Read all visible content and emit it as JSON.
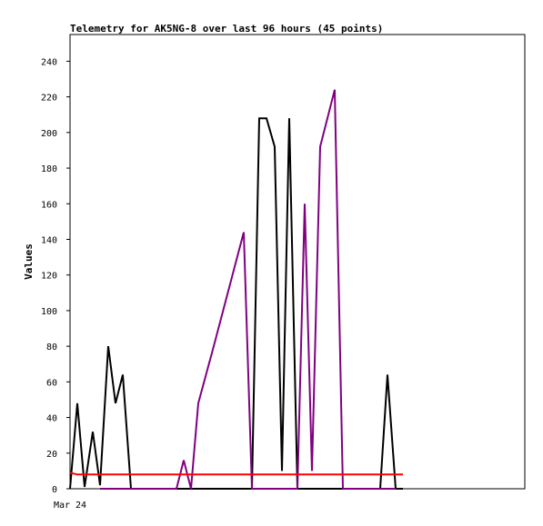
{
  "chart_data": {
    "type": "line",
    "title": "Telemetry for AK5NG-8 over last 96 hours (45 points)",
    "xlabel": "",
    "ylabel": "Values",
    "xlim": [
      0,
      500
    ],
    "ylim": [
      0,
      255
    ],
    "y_ticks": [
      0,
      20,
      40,
      60,
      80,
      100,
      120,
      140,
      160,
      180,
      200,
      220,
      240
    ],
    "x_tick_labels": [
      {
        "label": "Mar 24",
        "x": 0
      }
    ],
    "grid": false,
    "series": [
      {
        "color": "#000000",
        "points": [
          [
            0,
            0
          ],
          [
            8,
            48
          ],
          [
            16,
            1
          ],
          [
            25,
            32
          ],
          [
            33,
            2
          ],
          [
            42,
            80
          ],
          [
            50,
            48
          ],
          [
            58,
            64
          ],
          [
            67,
            0
          ],
          [
            200,
            0
          ],
          [
            208,
            208
          ],
          [
            216,
            208
          ],
          [
            225,
            192
          ],
          [
            233,
            10
          ],
          [
            241,
            208
          ],
          [
            250,
            0
          ],
          [
            341,
            0
          ],
          [
            349,
            64
          ],
          [
            358,
            0
          ],
          [
            366,
            0
          ]
        ]
      },
      {
        "color": "#800080",
        "points": [
          [
            33,
            0
          ],
          [
            117,
            0
          ],
          [
            125,
            16
          ],
          [
            133,
            0
          ],
          [
            141,
            48
          ],
          [
            158,
            80
          ],
          [
            191,
            144
          ],
          [
            200,
            0
          ],
          [
            250,
            0
          ],
          [
            258,
            160
          ],
          [
            266,
            10
          ],
          [
            275,
            192
          ],
          [
            291,
            224
          ],
          [
            300,
            0
          ],
          [
            341,
            0
          ],
          [
            358,
            0
          ]
        ]
      },
      {
        "color": "#ff0000",
        "points": [
          [
            0,
            9
          ],
          [
            8,
            8
          ],
          [
            366,
            8
          ]
        ]
      }
    ]
  }
}
